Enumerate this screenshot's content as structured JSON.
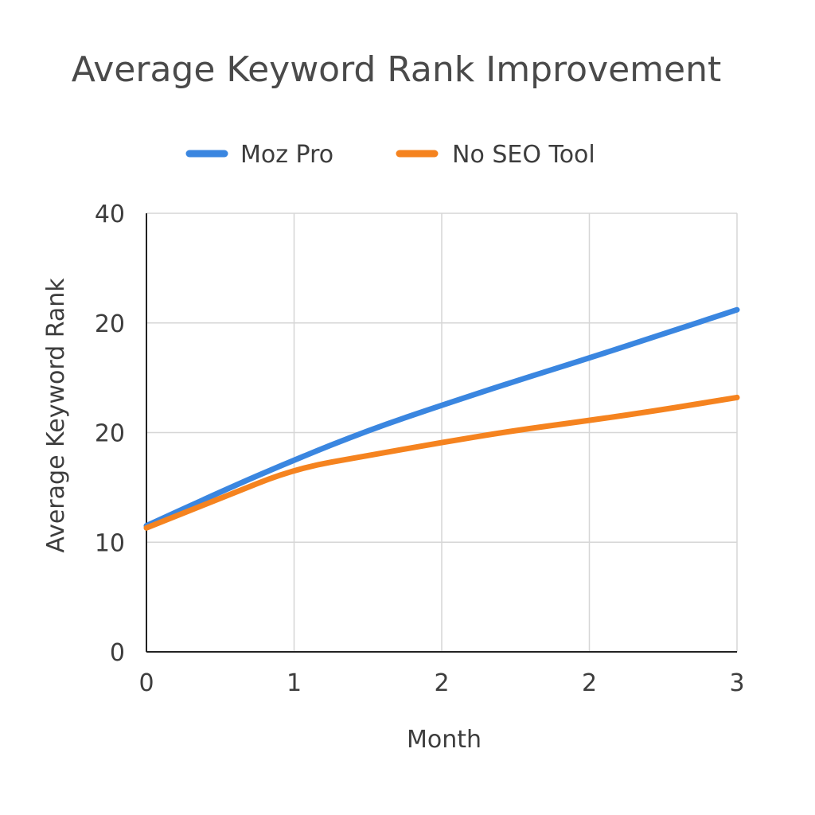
{
  "chart_data": {
    "type": "line",
    "title": "Average Keyword Rank Improvement",
    "xlabel": "Month",
    "ylabel": "Average Keyword Rank",
    "x_tick_labels": [
      "0",
      "1",
      "2",
      "2",
      "3"
    ],
    "y_tick_labels": [
      "0",
      "10",
      "20",
      "20",
      "40"
    ],
    "x": [
      0,
      0.5,
      1,
      1.5,
      2,
      2.5,
      3,
      3.5,
      4
    ],
    "grid": true,
    "legend_position": "top",
    "series": [
      {
        "name": "Moz Pro",
        "color": "#3a86e0",
        "values": [
          11.5,
          14.6,
          17.5,
          20.2,
          22.5,
          24.7,
          26.8,
          29.0,
          31.2
        ]
      },
      {
        "name": "No SEO Tool",
        "color": "#f5831f",
        "values": [
          11.3,
          14.0,
          16.7,
          17.9,
          19.1,
          20.2,
          21.1,
          22.1,
          23.2
        ]
      }
    ]
  }
}
